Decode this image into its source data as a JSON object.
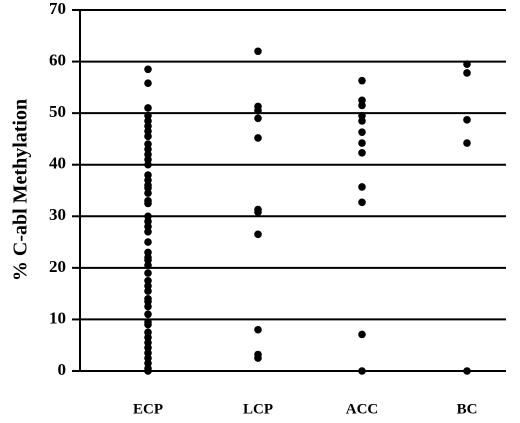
{
  "chart_data": {
    "type": "strip",
    "y_label": "% C-abl Methylation",
    "categories": [
      "ECP",
      "LCP",
      "ACC",
      "BC"
    ],
    "values": [
      [
        58.5,
        55.8,
        51,
        49.5,
        48.5,
        47.5,
        46.5,
        45.5,
        44,
        43,
        42,
        41,
        40,
        38,
        37,
        36,
        35.5,
        34.5,
        33,
        32.5,
        30,
        29,
        28,
        27,
        25,
        23,
        22,
        21.5,
        20.5,
        19,
        17.5,
        16.5,
        15.5,
        14,
        13.5,
        12.5,
        11,
        9.5,
        9,
        7.5,
        6.5,
        5.5,
        4.5,
        3.5,
        2.5,
        1.5,
        0.5,
        0
      ],
      [
        62,
        51.3,
        50.5,
        49,
        45.2,
        31.3,
        30.8,
        26.5,
        8,
        3.2,
        2.5
      ],
      [
        56.3,
        52.5,
        51.5,
        49.5,
        48.5,
        46.3,
        44.2,
        42.3,
        35.7,
        32.7,
        7.1,
        0
      ],
      [
        59.5,
        57.8,
        48.7,
        44.2,
        0
      ]
    ],
    "color": "#000000",
    "ylim": [
      0,
      70
    ],
    "yticks": [
      0,
      10,
      20,
      30,
      40,
      50,
      60,
      70
    ],
    "grid": true
  }
}
